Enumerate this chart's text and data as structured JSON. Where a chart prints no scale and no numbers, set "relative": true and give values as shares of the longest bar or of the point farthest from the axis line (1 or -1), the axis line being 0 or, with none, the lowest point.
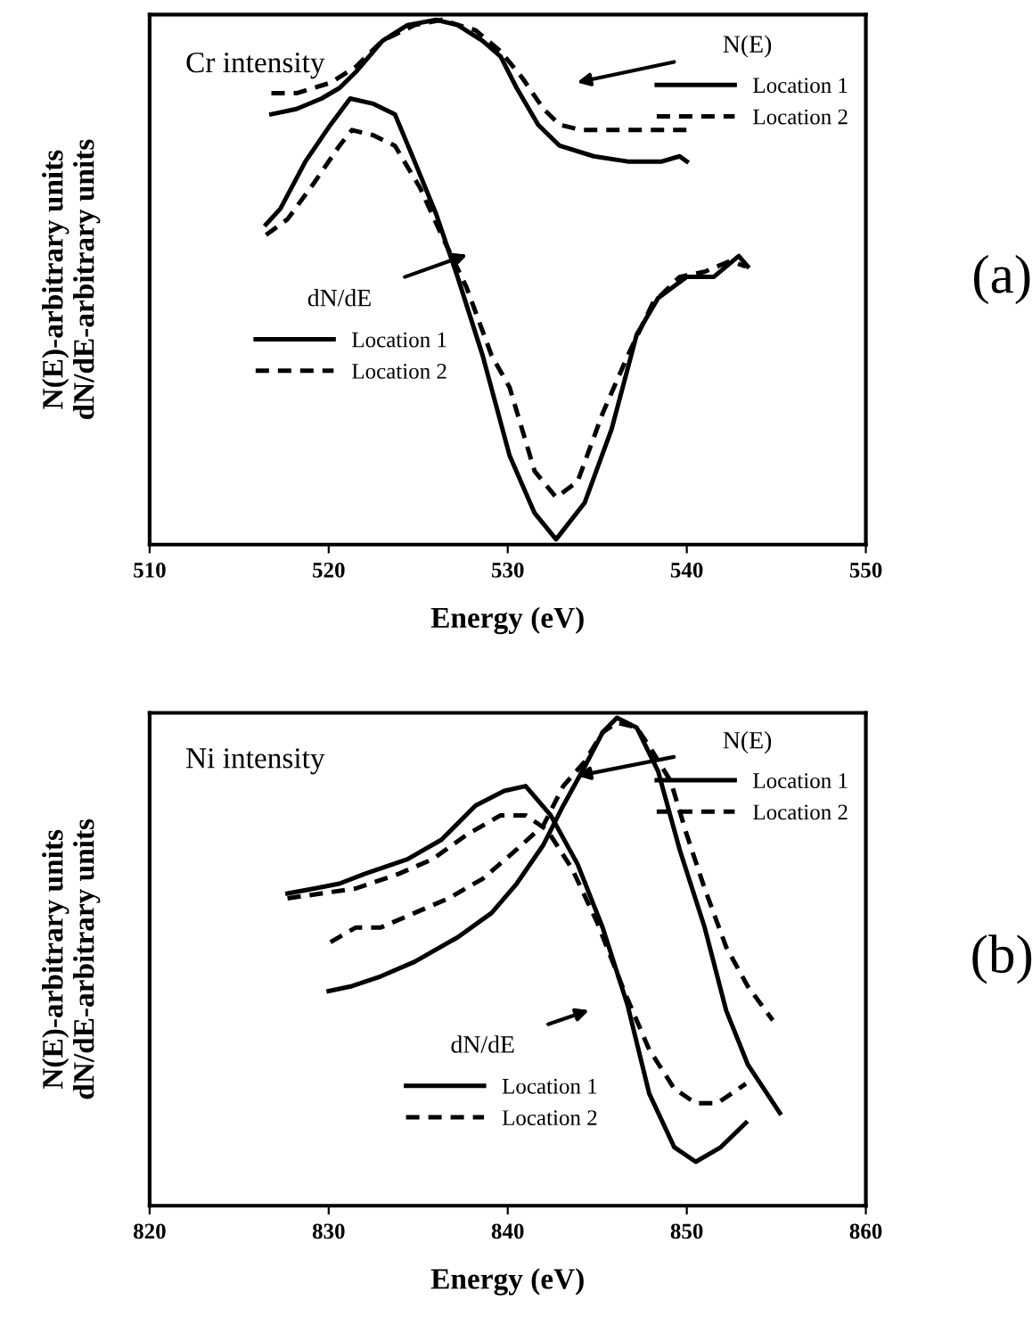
{
  "chart_data": [
    {
      "type": "line",
      "title": "Cr intensity",
      "xlabel": "Energy (eV)",
      "ylabel": "N(E)-arbitrary units\ndN/dE-arbitrary units",
      "relative": true,
      "xlim": [
        510,
        550
      ],
      "xticks": [
        510,
        520,
        530,
        540,
        550
      ],
      "grid": false,
      "legend": "top right",
      "annotations": [
        "N(E)",
        "dN/dE",
        "(a)"
      ],
      "series": [
        {
          "name": "Location 1",
          "color": "#000000",
          "line_style": "solid",
          "x": [
            516.8,
            518.2,
            519.6,
            520.6,
            521.5,
            523.0,
            524.4,
            526.0,
            527.2,
            528.6,
            529.6,
            530.5,
            531.7,
            532.9,
            534.8,
            536.7,
            538.6,
            539.6,
            540.0
          ],
          "values": [
            0.82,
            0.83,
            0.85,
            0.87,
            0.9,
            0.96,
            0.99,
            1.0,
            0.99,
            0.96,
            0.93,
            0.87,
            0.8,
            0.76,
            0.74,
            0.73,
            0.73,
            0.74,
            0.73
          ]
        },
        {
          "name": "Location 2",
          "color": "#000000",
          "line_style": "dashed",
          "x": [
            516.8,
            518.2,
            520.1,
            521.5,
            523.0,
            524.8,
            526.3,
            528.2,
            529.6,
            530.8,
            532.0,
            532.9,
            534.1,
            540.0
          ],
          "values": [
            0.86,
            0.86,
            0.88,
            0.91,
            0.96,
            0.99,
            1.0,
            0.98,
            0.94,
            0.89,
            0.83,
            0.8,
            0.79,
            0.79
          ]
        },
        {
          "name": "Location 1",
          "color": "#000000",
          "line_style": "solid",
          "x": [
            516.5,
            517.3,
            518.7,
            520.1,
            521.2,
            522.5,
            523.7,
            524.8,
            526.0,
            527.2,
            528.6,
            530.1,
            531.5,
            532.7,
            534.3,
            535.8,
            537.2,
            538.4,
            540.0,
            541.5,
            542.9,
            543.4
          ],
          "values": [
            0.61,
            0.64,
            0.73,
            0.8,
            0.85,
            0.84,
            0.82,
            0.73,
            0.63,
            0.51,
            0.36,
            0.17,
            0.06,
            0.01,
            0.08,
            0.22,
            0.4,
            0.47,
            0.51,
            0.51,
            0.55,
            0.53
          ]
        },
        {
          "name": "Location 2",
          "color": "#000000",
          "line_style": "dashed",
          "x": [
            516.5,
            517.7,
            519.2,
            520.6,
            521.3,
            522.5,
            523.7,
            525.1,
            526.3,
            527.7,
            529.1,
            530.1,
            531.5,
            532.7,
            533.9,
            535.3,
            536.7,
            538.1,
            539.6,
            541.0,
            542.4,
            543.3
          ],
          "values": [
            0.59,
            0.62,
            0.69,
            0.76,
            0.79,
            0.78,
            0.76,
            0.68,
            0.59,
            0.49,
            0.36,
            0.3,
            0.14,
            0.09,
            0.12,
            0.25,
            0.36,
            0.46,
            0.51,
            0.52,
            0.54,
            0.53
          ]
        }
      ]
    },
    {
      "type": "line",
      "title": "Ni intensity",
      "xlabel": "Energy (eV)",
      "ylabel": "N(E)-arbitrary units\ndN/dE-arbitrary units",
      "relative": true,
      "xlim": [
        820,
        860
      ],
      "xticks": [
        820,
        830,
        840,
        850,
        860
      ],
      "grid": false,
      "legend": "top right",
      "annotations": [
        "N(E)",
        "dN/dE",
        "(b)"
      ],
      "series": [
        {
          "name": "Location 1",
          "color": "#000000",
          "line_style": "solid",
          "x": [
            830.0,
            831.3,
            832.9,
            834.8,
            837.2,
            839.1,
            840.5,
            842.0,
            843.1,
            844.3,
            845.3,
            846.1,
            847.2,
            848.4,
            849.6,
            851.0,
            852.2,
            853.4,
            855.2
          ],
          "values": [
            0.44,
            0.45,
            0.47,
            0.5,
            0.55,
            0.6,
            0.66,
            0.74,
            0.82,
            0.9,
            0.97,
            1.0,
            0.98,
            0.89,
            0.73,
            0.57,
            0.4,
            0.29,
            0.19
          ]
        },
        {
          "name": "Location 2",
          "color": "#000000",
          "line_style": "dashed",
          "x": [
            830.1,
            831.5,
            832.9,
            834.8,
            836.7,
            838.6,
            840.5,
            842.0,
            843.1,
            844.3,
            845.3,
            846.1,
            847.2,
            848.1,
            849.1,
            850.0,
            851.0,
            852.2,
            853.4,
            854.8
          ],
          "values": [
            0.54,
            0.57,
            0.57,
            0.6,
            0.63,
            0.67,
            0.73,
            0.78,
            0.86,
            0.91,
            0.97,
            0.99,
            0.98,
            0.93,
            0.87,
            0.76,
            0.65,
            0.53,
            0.45,
            0.38
          ]
        },
        {
          "name": "Location 1",
          "color": "#000000",
          "line_style": "solid",
          "x": [
            827.7,
            829.2,
            830.6,
            832.0,
            834.4,
            836.3,
            838.2,
            839.8,
            841.0,
            842.4,
            843.9,
            845.3,
            846.7,
            847.9,
            849.3,
            850.5,
            851.9,
            853.3
          ],
          "values": [
            0.64,
            0.65,
            0.66,
            0.68,
            0.71,
            0.75,
            0.82,
            0.85,
            0.86,
            0.8,
            0.7,
            0.57,
            0.41,
            0.23,
            0.12,
            0.09,
            0.12,
            0.17
          ]
        },
        {
          "name": "Location 2",
          "color": "#000000",
          "line_style": "dashed",
          "x": [
            827.7,
            829.6,
            831.5,
            833.9,
            835.8,
            837.7,
            839.6,
            841.0,
            842.2,
            843.6,
            845.0,
            846.5,
            847.9,
            849.3,
            850.5,
            851.7,
            853.3
          ],
          "values": [
            0.63,
            0.64,
            0.65,
            0.68,
            0.71,
            0.76,
            0.8,
            0.8,
            0.77,
            0.69,
            0.58,
            0.44,
            0.32,
            0.24,
            0.21,
            0.21,
            0.25
          ]
        }
      ]
    }
  ]
}
